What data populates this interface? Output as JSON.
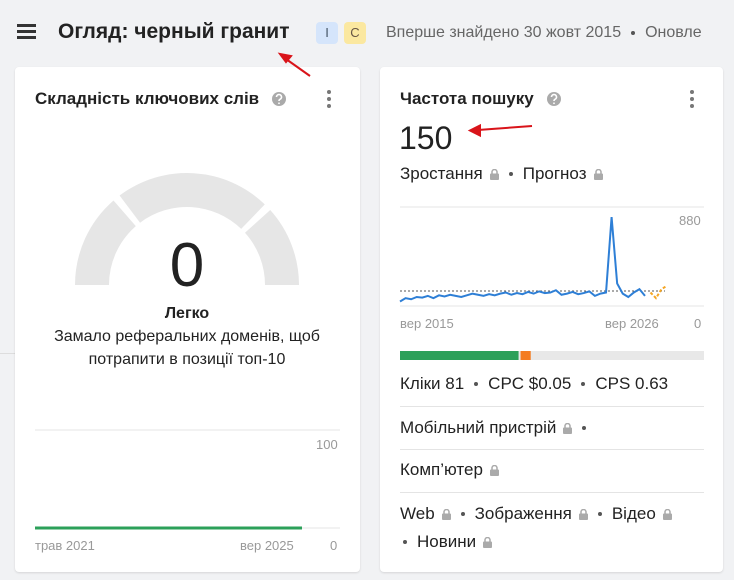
{
  "header": {
    "title": "Огляд: черный гранит",
    "badges": [
      "I",
      "C"
    ],
    "first_seen": "Вперше знайдено 30 жовт 2015",
    "updated": "Оновле"
  },
  "difficulty": {
    "title": "Складність ключових слів",
    "score": "0",
    "level": "Легко",
    "description": [
      "Замало реферальних доменів, щоб",
      "потрапити в позиції топ-10"
    ],
    "trend": {
      "values": [
        0,
        0
      ],
      "color": "#2ca05a",
      "ylim": [
        0,
        100
      ],
      "yticks": [
        0,
        100
      ],
      "x_labels": [
        "трав 2021",
        "вер 2025"
      ]
    }
  },
  "volume": {
    "title": "Частота пошуку",
    "value": "150",
    "growth": "Зростання",
    "forecast": "Прогноз",
    "trend": {
      "values": [
        40,
        70,
        60,
        80,
        75,
        90,
        70,
        95,
        85,
        100,
        90,
        80,
        95,
        110,
        100,
        90,
        105,
        95,
        110,
        120,
        100,
        115,
        105,
        125,
        110,
        130,
        115,
        120,
        140,
        100,
        110,
        125,
        105,
        115,
        130,
        90,
        110,
        120,
        790,
        200,
        110,
        80,
        120,
        150,
        90
      ],
      "forecast_values": [
        120,
        70,
        150,
        180
      ],
      "reference_line": 133,
      "color": "#2e7fd6",
      "forecast_color": "#f5a623",
      "ylim": [
        0,
        880
      ],
      "yticks": [
        0,
        880
      ],
      "x_labels": [
        "вер 2015",
        "вер 2026"
      ]
    },
    "intent_bar": [
      {
        "color": "#2ca05a",
        "value": 39
      },
      {
        "color": "#f47c20",
        "value": 4
      }
    ],
    "metrics": [
      "Кліки 81",
      "CPC $0.05",
      "CPS 0.63"
    ],
    "devices": [
      "Мобільний пристрій",
      "Комп’ютер"
    ],
    "serp": [
      "Web",
      "Зображення",
      "Відео",
      "Новини"
    ]
  }
}
